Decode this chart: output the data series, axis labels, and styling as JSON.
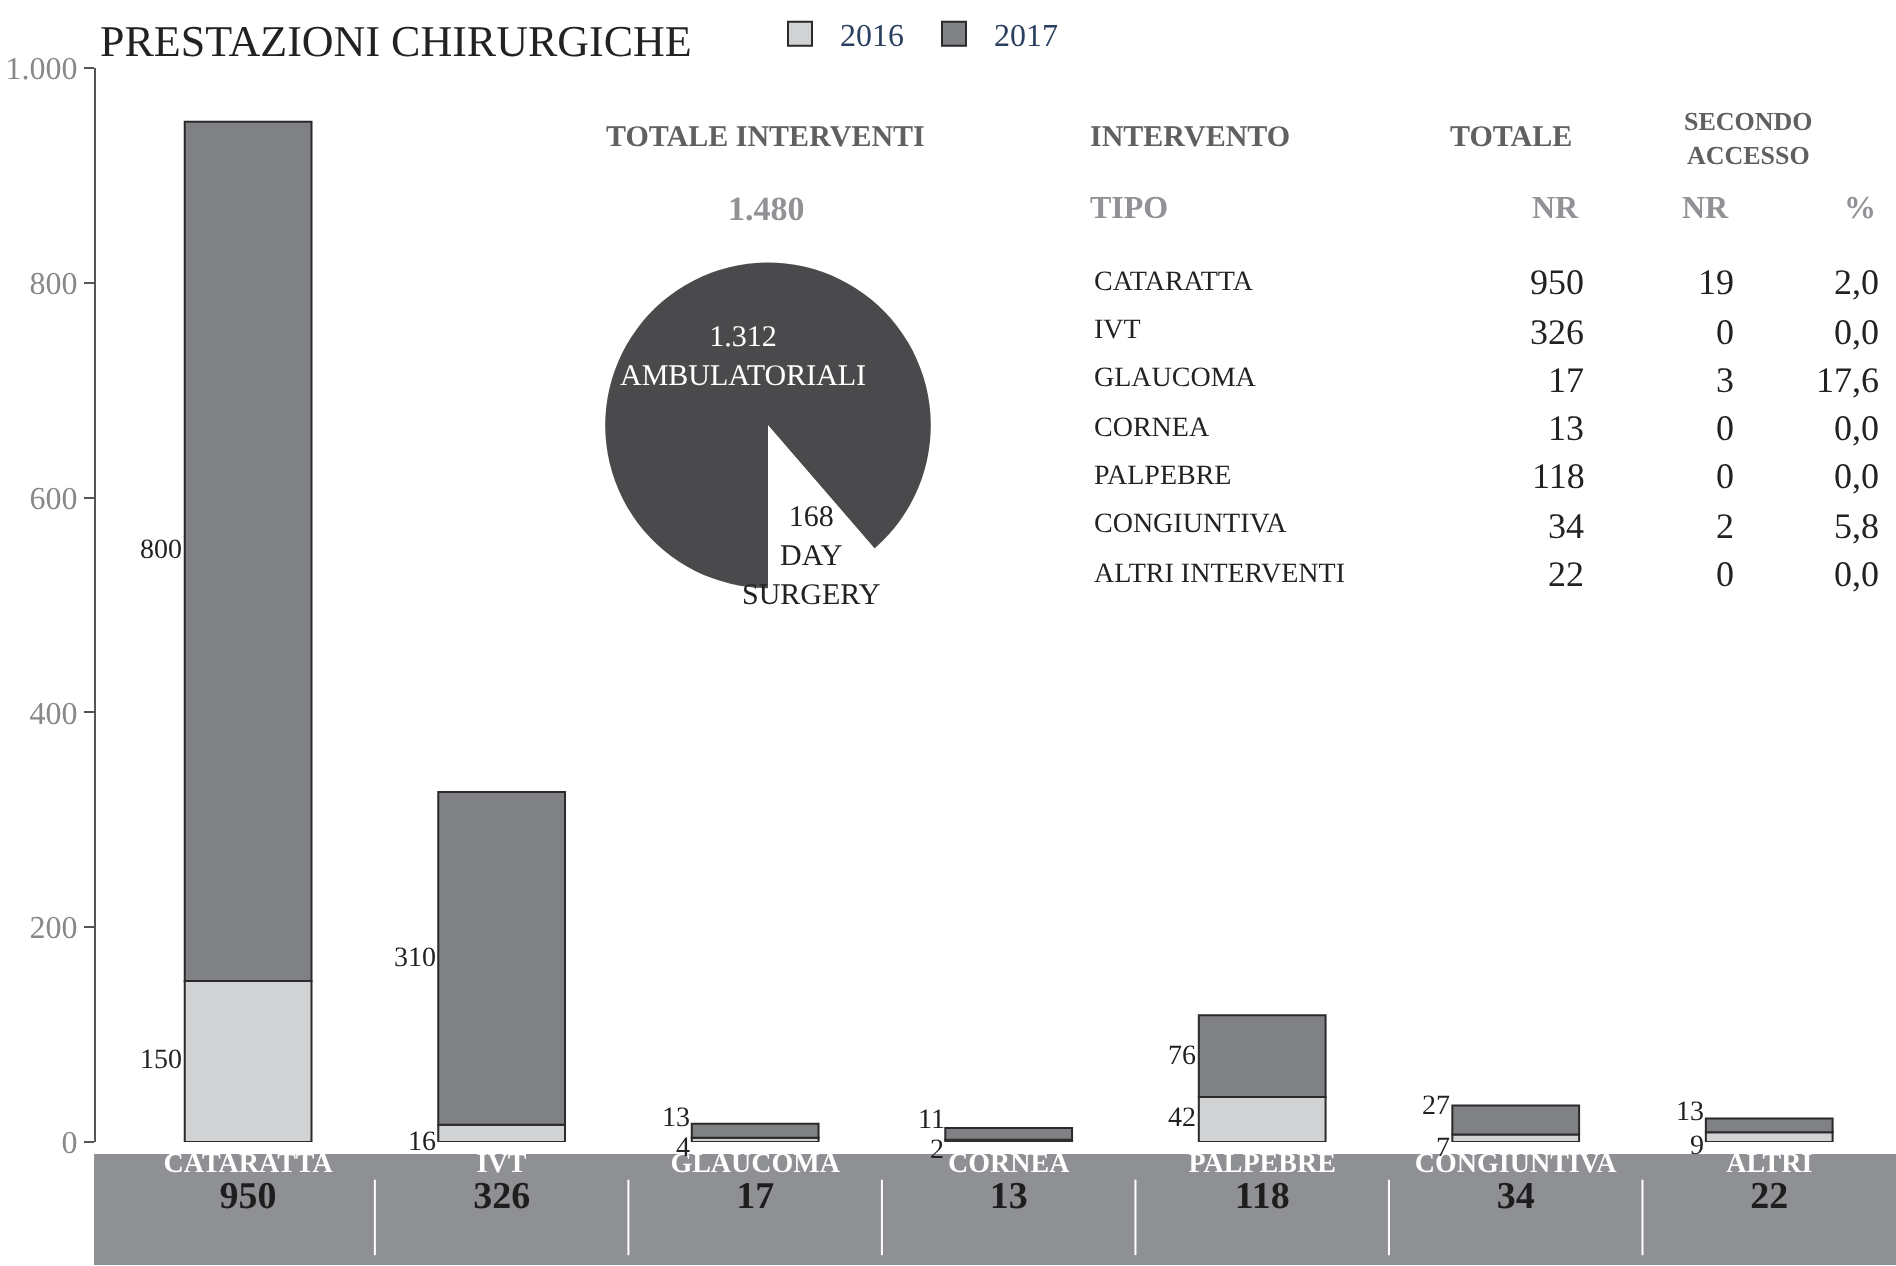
{
  "chart_data": [
    {
      "type": "bar",
      "title": "PRESTAZIONI CHIRURGICHE",
      "stacked": true,
      "categories": [
        "CATARATTA",
        "IVT",
        "GLAUCOMA",
        "CORNEA",
        "PALPEBRE",
        "CONGIUNTIVA",
        "ALTRI"
      ],
      "series": [
        {
          "name": "2016",
          "color": "#d1d2d4",
          "values": [
            150,
            16,
            4,
            2,
            42,
            7,
            9
          ]
        },
        {
          "name": "2017",
          "color": "#808185",
          "values": [
            800,
            310,
            13,
            11,
            76,
            27,
            13
          ]
        }
      ],
      "totals": [
        "950",
        "326",
        "17",
        "13",
        "118",
        "34",
        "22"
      ],
      "ylim": [
        0,
        1000
      ],
      "yticks": [
        0,
        200,
        400,
        600,
        800,
        {
          "value": 1000,
          "label": "1.000"
        }
      ],
      "data_labels": true,
      "grid": false,
      "legend": "top left"
    },
    {
      "type": "pie",
      "title": "TOTALE INTERVENTI",
      "subtitle": "1.480",
      "categories": [
        "AMBULATORIALI",
        "DAY SURGERY"
      ],
      "values": [
        1312,
        168
      ],
      "colors": [
        "#4a4a4d",
        "#ffffff"
      ],
      "value_labels": [
        "1.312",
        "168"
      ]
    },
    {
      "type": "other",
      "annotations": [
        "INTERVENTO",
        "TOTALE",
        "SECONDO ACCESSO",
        "TIPO"
      ],
      "categories": [
        "CATARATTA",
        "IVT",
        "GLAUCOMA",
        "CORNEA",
        "PALPEBRE",
        "CONGIUNTIVA",
        "ALTRI INTERVENTI"
      ],
      "series": [
        {
          "name": "NR",
          "values": [
            950,
            326,
            17,
            13,
            118,
            34,
            22
          ],
          "value_labels": [
            "950",
            "326",
            "17",
            "13",
            "118",
            "34",
            "22"
          ]
        },
        {
          "name": "NR",
          "values": [
            19,
            0,
            3,
            0,
            0,
            2,
            0
          ],
          "value_labels": [
            "19",
            "0",
            "3",
            "0",
            "0",
            "2",
            "0"
          ]
        },
        {
          "name": "%",
          "values": [
            2.0,
            0.0,
            17.6,
            0.0,
            0.0,
            5.8,
            0.0
          ],
          "value_labels": [
            "2,0",
            "0,0",
            "17,6",
            "0,0",
            "0,0",
            "5,8",
            "0,0"
          ]
        }
      ]
    }
  ]
}
